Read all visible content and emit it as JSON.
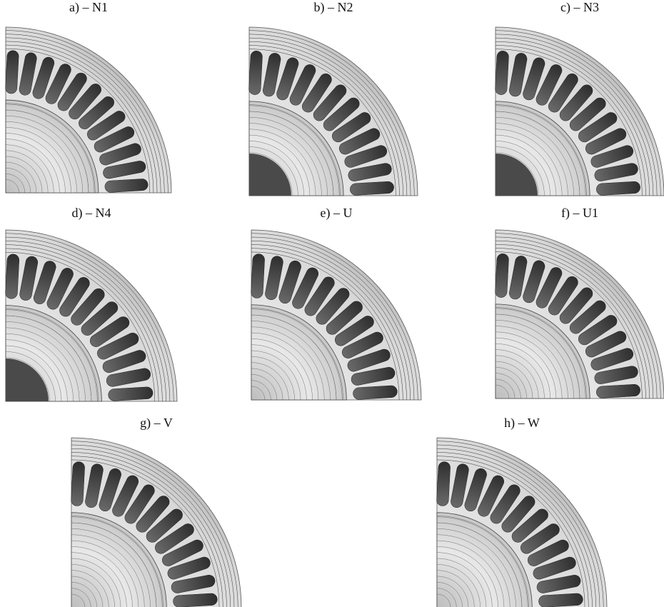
{
  "panels": [
    {
      "label": "a) – N1"
    },
    {
      "label": "b) – N2"
    },
    {
      "label": "c) – N3"
    },
    {
      "label": "d) – N4"
    },
    {
      "label": "e) – U"
    },
    {
      "label": "f) – U1"
    },
    {
      "label": "g) – V"
    },
    {
      "label": "h) – W"
    }
  ]
}
